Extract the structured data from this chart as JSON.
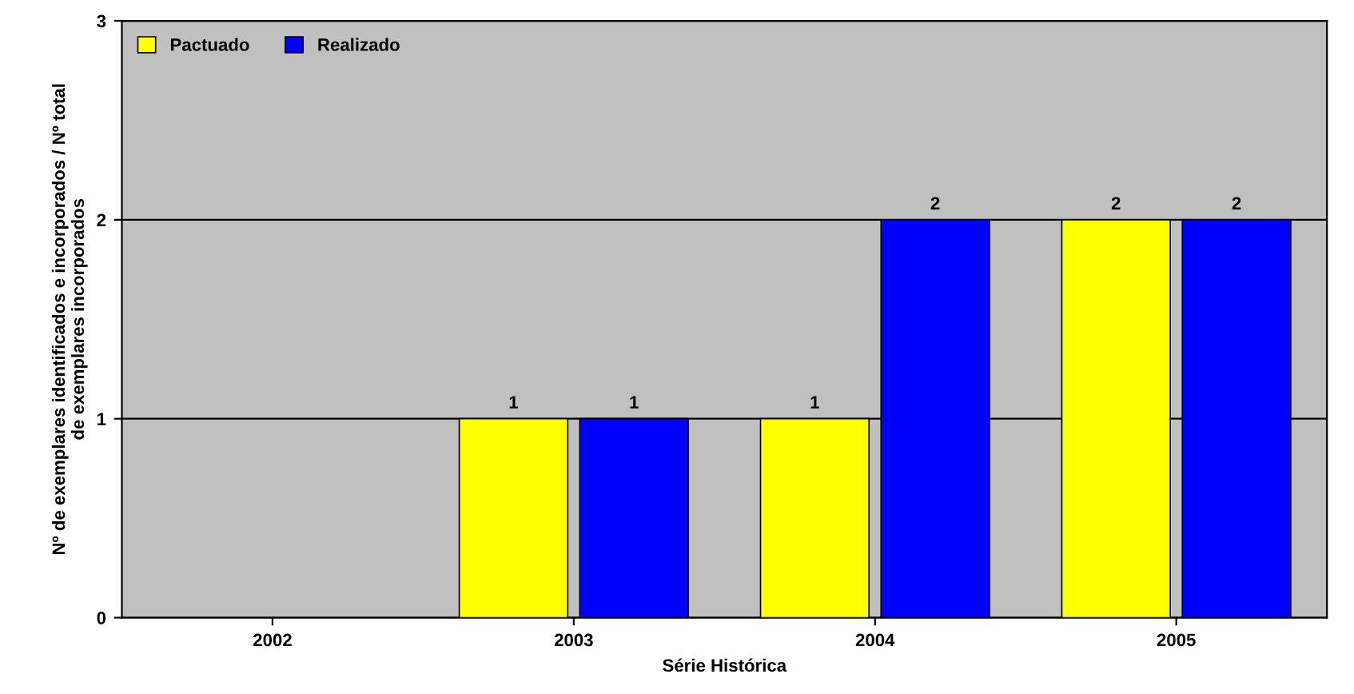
{
  "chart_data": {
    "type": "bar",
    "xlabel": "Série Histórica",
    "ylabel": "Nº de exemplares identificados e incorporados / Nº total\nde exemplares incorporados",
    "categories": [
      "2002",
      "2003",
      "2004",
      "2005"
    ],
    "series": [
      {
        "name": "Pactuado",
        "color": "#ffff00",
        "values": [
          null,
          1,
          1,
          2
        ]
      },
      {
        "name": "Realizado",
        "color": "#0000ff",
        "values": [
          null,
          1,
          2,
          2
        ]
      }
    ],
    "ylim": [
      0,
      3
    ],
    "yticks": [
      0,
      1,
      2,
      3
    ],
    "grid": "y",
    "legend": "top left",
    "data_labels": true
  }
}
